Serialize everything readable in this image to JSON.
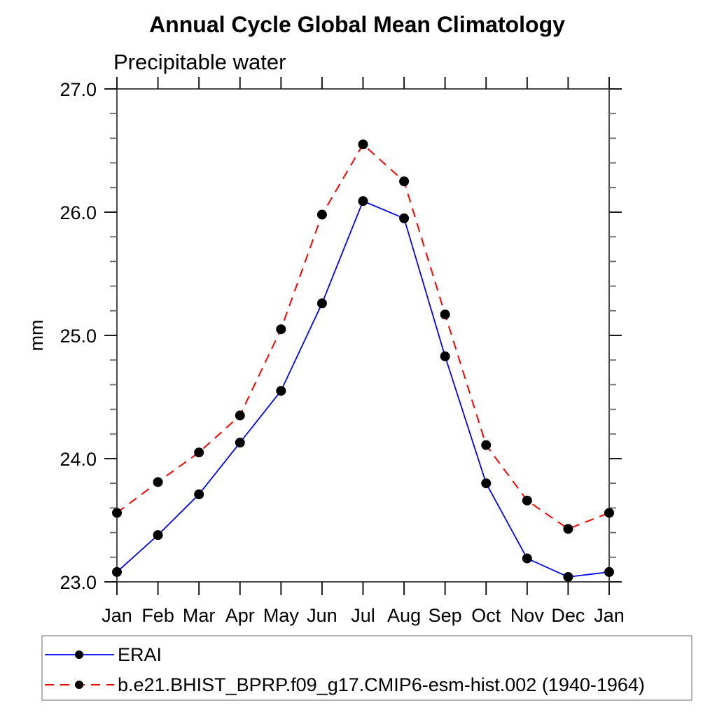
{
  "page": {
    "background": "#ffffff"
  },
  "chart_data": {
    "type": "line",
    "title": "Annual Cycle Global Mean Climatology",
    "subtitle": "Precipitable water",
    "ylabel": "mm",
    "xlabel": "",
    "categories": [
      "Jan",
      "Feb",
      "Mar",
      "Apr",
      "May",
      "Jun",
      "Jul",
      "Aug",
      "Sep",
      "Oct",
      "Nov",
      "Dec",
      "Jan"
    ],
    "series": [
      {
        "name": "ERAI",
        "color": "#0000ff",
        "line_style": "solid",
        "marker": "filled-circle",
        "marker_color": "#000000",
        "values": [
          23.08,
          23.38,
          23.71,
          24.13,
          24.55,
          25.26,
          26.09,
          25.95,
          24.83,
          23.8,
          23.19,
          23.04,
          23.08
        ]
      },
      {
        "name": "b.e21.BHIST_BPRP.f09_g17.CMIP6-esm-hist.002 (1940-1964)",
        "color": "#ff0000",
        "line_style": "dashed",
        "marker": "filled-circle",
        "marker_color": "#000000",
        "values": [
          23.56,
          23.81,
          24.05,
          24.35,
          25.05,
          25.98,
          26.55,
          26.25,
          25.17,
          24.11,
          23.66,
          23.43,
          23.56
        ]
      }
    ],
    "ylim": [
      23.0,
      27.0
    ],
    "ytick_major": 1.0,
    "ytick_minor": 0.2,
    "ytick_labels": [
      "23.0",
      "24.0",
      "25.0",
      "26.0",
      "27.0"
    ],
    "grid": false,
    "axis_color": "#4a4a4a",
    "major_tick_color": "#1a1a1a",
    "minor_tick_color": "#6a6a6a",
    "legend_position": "bottom",
    "legend_border_color": "#9a9a9a"
  }
}
